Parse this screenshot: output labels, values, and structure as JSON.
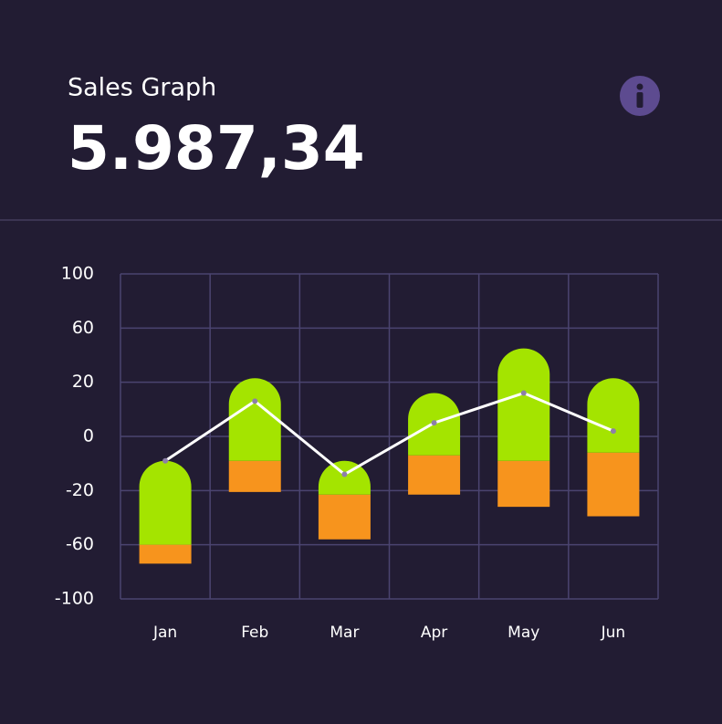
{
  "header": {
    "title": "Sales Graph",
    "value": "5.987,34"
  },
  "chart_data": {
    "type": "combo",
    "categories": [
      "Jan",
      "Feb",
      "Mar",
      "Apr",
      "May",
      "Jun"
    ],
    "ylim": [
      -100,
      100
    ],
    "yticks": [
      100,
      60,
      20,
      0,
      -20,
      -60,
      -100
    ],
    "grid": true,
    "series": [
      {
        "type": "range_bar",
        "color": "#f7941d",
        "ranges": [
          [
            -74,
            -60
          ],
          [
            -21,
            -9
          ],
          [
            -56,
            -23
          ],
          [
            -23,
            -7
          ],
          [
            -32,
            -9
          ],
          [
            -39,
            -6
          ]
        ]
      },
      {
        "type": "range_bar",
        "color": "#a4e400",
        "ranges": [
          [
            -60,
            -9
          ],
          [
            -9,
            23
          ],
          [
            -23,
            -9
          ],
          [
            -7,
            16
          ],
          [
            -9,
            45
          ],
          [
            -6,
            23
          ]
        ]
      },
      {
        "type": "line",
        "color": "#ffffff",
        "values": [
          -9,
          13,
          -14,
          5,
          16,
          2
        ]
      }
    ]
  }
}
